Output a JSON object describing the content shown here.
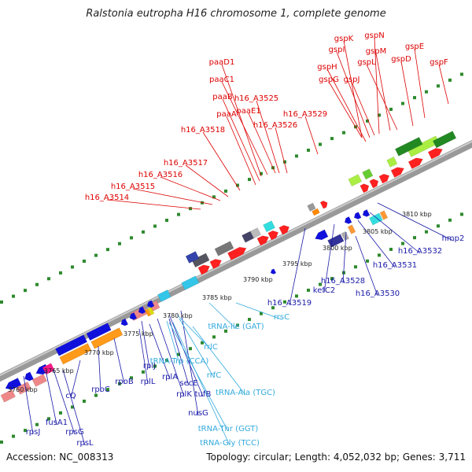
{
  "title": "Ralstonia eutropha H16 chromosome 1, complete genome",
  "footer": {
    "accession": "Accession: NC_008313",
    "info": "Topology: circular; Length: 4,052,032 bp; Genes: 3,711"
  },
  "colors": {
    "forward_label": "#dd0000",
    "reverse_label": "#1a1aa8",
    "rna_label": "#33aadd",
    "backbone": "#888888"
  },
  "ticks": [
    "3760 kbp",
    "3765 kbp",
    "3770 kbp",
    "3775 kbp",
    "3780 kbp",
    "3785 kbp",
    "3790 kbp",
    "3795 kbp",
    "3800 kbp",
    "3805 kbp",
    "3810 kbp"
  ],
  "labels": {
    "forward": [
      "gspK",
      "gspN",
      "gspI",
      "gspM",
      "gspE",
      "gspH",
      "gspL",
      "gspD",
      "gspF",
      "gspG",
      "gspJ",
      "paaD1",
      "paaC1",
      "paaB",
      "h16_A3525",
      "paaE1",
      "paaA",
      "h16_A3529",
      "h16_A3526",
      "h16_A3518",
      "h16_A3517",
      "h16_A3516",
      "h16_A3515",
      "h16_A3514"
    ],
    "reverse": [
      "hmp2",
      "h16_A3532",
      "h16_A3531",
      "kefC2",
      "h16_A3528",
      "h16_A3530",
      "h16_A3519",
      "rpoB",
      "rpoC",
      "cQ",
      "rplL",
      "rplA",
      "rplJ",
      "secE",
      "rplK",
      "tufB",
      "nusG",
      "fusA1",
      "rpsG",
      "rpsL",
      "rpsJ"
    ],
    "rna": [
      "rrsC",
      "tRNA-Ile (GAT)",
      "rrlC",
      "tRNA-Trp (CCA)",
      "rrfC",
      "tRNA-Ala (TGC)",
      "tRNA-Thr (GGT)",
      "tRNA-Gly (TCC)"
    ]
  }
}
